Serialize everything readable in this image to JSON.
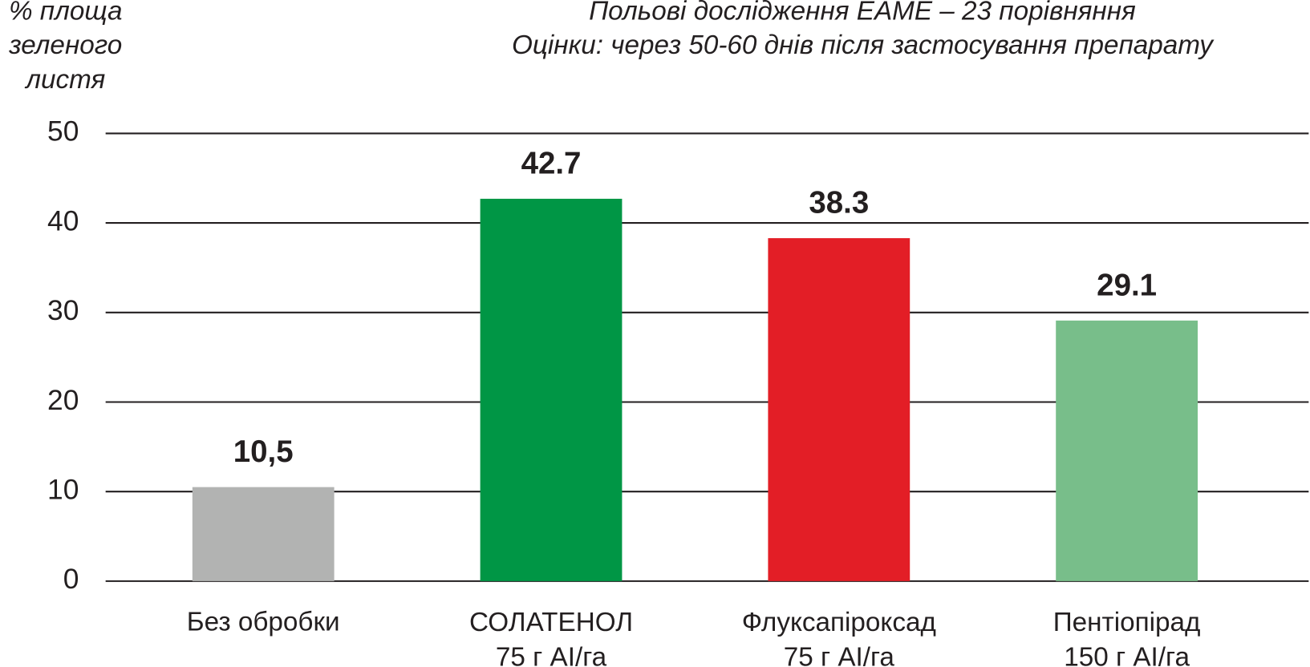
{
  "chart_data": {
    "type": "bar",
    "title": "Польові дослідження EAME – 23 порівняння",
    "subtitle": "Оцінки: через 50-60 днів після застосування препарату",
    "y_label": "% площа\nзеленого\nлистя",
    "categories": [
      "Без обробки",
      "СОЛАТЕНОЛ\n75 г AI/га",
      "Флуксапіроксад\n75 г AI/га",
      "Пентіопірад\n150 г AI/га"
    ],
    "values": [
      10.5,
      42.7,
      38.3,
      29.1
    ],
    "value_labels": [
      "10,5",
      "42.7",
      "38.3",
      "29.1"
    ],
    "colors": [
      "#b2b3b2",
      "#009645",
      "#e31e26",
      "#78be8a"
    ],
    "ylim": [
      0,
      50
    ],
    "yticks": [
      0,
      10,
      20,
      30,
      40,
      50
    ],
    "grid": true
  }
}
